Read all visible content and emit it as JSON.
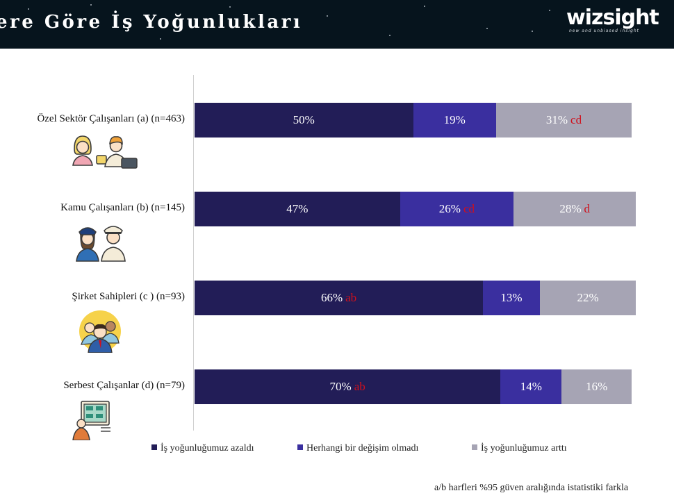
{
  "header": {
    "title": "ere Göre İş Yoğunlukları",
    "logo_text": "wizsight",
    "logo_tagline": "new and unbiased insight"
  },
  "colors": {
    "header_bg": "#06141d",
    "azaldi": "#221d57",
    "degisim_yok": "#3a2f9f",
    "artti": "#a6a4b4",
    "significance": "#d0101c"
  },
  "chart_data": {
    "type": "bar",
    "orientation": "horizontal",
    "stacked": true,
    "xlim": [
      0,
      100
    ],
    "value_unit": "%",
    "categories": [
      "Özel Sektör Çalışanları (a) (n=463)",
      "Kamu Çalışanları (b) (n=145)",
      "Şirket Sahipleri (c ) (n=93)",
      "Serbest Çalışanlar (d) (n=79)"
    ],
    "series": [
      {
        "name": "İş yoğunluğumuz azaldı",
        "values": [
          50,
          47,
          66,
          70
        ],
        "significance": [
          "",
          "",
          "ab",
          "ab"
        ]
      },
      {
        "name": "Herhangi bir değişim olmadı",
        "values": [
          19,
          26,
          13,
          14
        ],
        "significance": [
          "",
          "cd",
          "",
          ""
        ]
      },
      {
        "name": "İş yoğunluğumuz arttı",
        "values": [
          31,
          28,
          22,
          16
        ],
        "significance": [
          "cd",
          "d",
          "",
          ""
        ]
      }
    ],
    "legend_position": "bottom",
    "icons": [
      "business-people-icon",
      "police-officers-icon",
      "business-owners-icon",
      "freelancer-icon"
    ]
  },
  "footnote": "a/b harfleri %95 güven aralığında istatistiki farkla"
}
